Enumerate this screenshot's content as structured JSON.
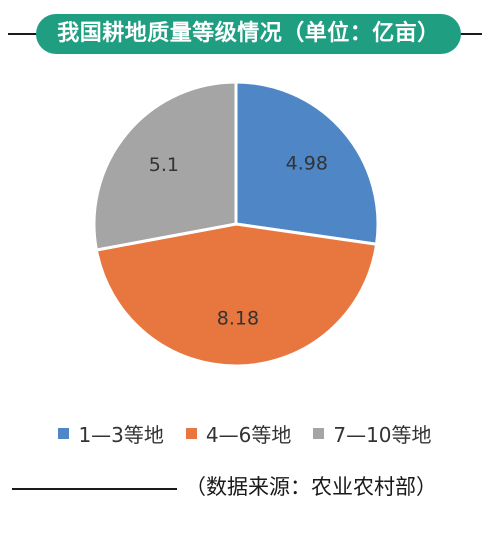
{
  "title": "我国耕地质量等级情况（单位：亿亩）",
  "source": "（数据来源：农业农村部）",
  "chart_data": {
    "type": "pie",
    "title": "我国耕地质量等级情况（单位：亿亩）",
    "categories": [
      "1—3等地",
      "4—6等地",
      "7—10等地"
    ],
    "values": [
      4.98,
      8.18,
      5.1
    ],
    "value_labels": [
      "4.98",
      "8.18",
      "5.1"
    ],
    "colors": [
      "#4f86c6",
      "#e8773f",
      "#a5a5a5"
    ],
    "legend_position": "bottom",
    "start_angle": "top, clockwise"
  },
  "colors": {
    "title_bg": "#1f9e82",
    "title_text": "#ffffff"
  }
}
